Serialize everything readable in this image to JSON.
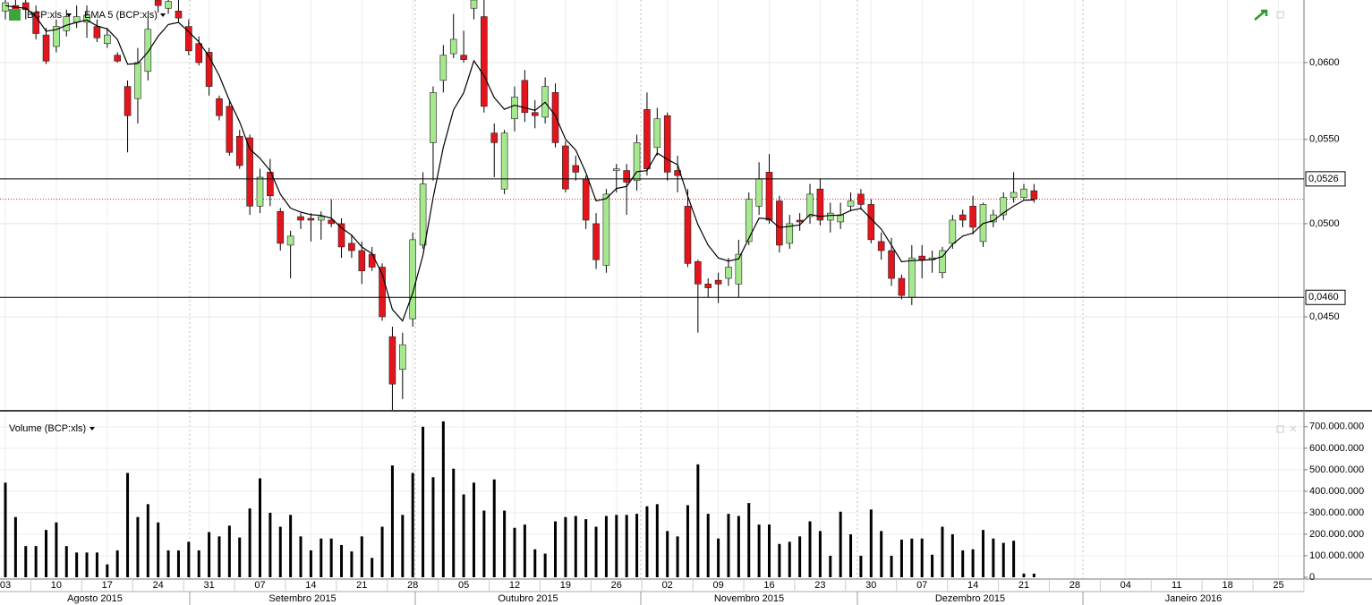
{
  "chart_data": [
    {
      "type": "candlestick",
      "name": "BCP:xls",
      "log_scale": true,
      "grid": true,
      "up_color": "#a6e88e",
      "down_color": "#e3141c",
      "categories": [
        "03",
        null,
        null,
        null,
        null,
        "10",
        null,
        null,
        null,
        null,
        "17",
        null,
        null,
        null,
        null,
        "24",
        null,
        null,
        null,
        null,
        "31",
        null,
        null,
        null,
        null,
        "07",
        null,
        null,
        null,
        null,
        "14",
        null,
        null,
        null,
        null,
        "21",
        null,
        null,
        null,
        null,
        "28",
        null,
        null,
        null,
        null,
        "05",
        null,
        null,
        null,
        null,
        "12",
        null,
        null,
        null,
        null,
        "19",
        null,
        null,
        null,
        null,
        "26",
        null,
        null,
        null,
        null,
        "02",
        null,
        null,
        null,
        null,
        "09",
        null,
        null,
        null,
        null,
        "16",
        null,
        null,
        null,
        null,
        "23",
        null,
        null,
        null,
        null,
        "30",
        null,
        null,
        null,
        null,
        "07",
        null,
        null,
        null,
        null,
        "14",
        null,
        null,
        null,
        null,
        "21",
        null,
        null,
        null,
        null,
        "28",
        null,
        null,
        null,
        null,
        "04",
        null,
        null,
        null,
        null,
        "11",
        null,
        null,
        null,
        null,
        "18",
        null,
        null,
        null,
        null,
        "25"
      ],
      "months": [
        "Agosto 2015",
        "Setembro 2015",
        "Outubro 2015",
        "Novembro 2015",
        "Dezembro 2015",
        "Janeiro 2016"
      ],
      "open": [
        0.0636,
        0.064,
        0.0642,
        0.0635,
        0.0619,
        0.0611,
        0.0622,
        0.0628,
        0.0628,
        0.0625,
        0.0613,
        0.0605,
        0.0584,
        0.0576,
        0.0594,
        0.0644,
        0.0638,
        0.0636,
        0.0625,
        0.0613,
        0.0607,
        0.0576,
        0.0571,
        0.0552,
        0.0551,
        0.051,
        0.053,
        0.0507,
        0.0488,
        0.0504,
        0.0503,
        0.0502,
        0.0502,
        0.05,
        0.0489,
        0.0485,
        0.0483,
        0.0476,
        0.044,
        0.0424,
        0.0449,
        0.0488,
        0.0548,
        0.0588,
        0.0606,
        0.0605,
        0.0638,
        0.0632,
        0.0554,
        0.052,
        0.0563,
        0.0588,
        0.0567,
        0.0564,
        0.058,
        0.0546,
        0.0534,
        0.0526,
        0.05,
        0.0477,
        0.0531,
        0.0531,
        0.0525,
        0.0569,
        0.0545,
        0.0565,
        0.0531,
        0.051,
        0.0479,
        0.0467,
        0.0469,
        0.047,
        0.0467,
        0.049,
        0.051,
        0.053,
        0.0513,
        0.0489,
        0.0502,
        0.0504,
        0.052,
        0.0502,
        0.0501,
        0.051,
        0.0517,
        0.0511,
        0.049,
        0.0485,
        0.047,
        0.046,
        0.0482,
        0.048,
        0.0473,
        0.0489,
        0.0505,
        0.051,
        0.049,
        0.0501,
        0.0505,
        0.0515,
        0.0515,
        0.0519,
        null,
        null,
        null,
        null,
        null,
        null,
        null,
        null,
        null,
        null,
        null,
        null,
        null,
        null,
        null,
        null,
        null,
        null,
        null,
        null,
        null,
        null,
        null,
        null
      ],
      "high": [
        0.0644,
        0.0644,
        0.0644,
        0.064,
        0.0624,
        0.063,
        0.0637,
        0.064,
        0.064,
        0.063,
        0.0624,
        0.0607,
        0.0588,
        0.061,
        0.0632,
        0.0644,
        0.0644,
        0.0644,
        0.063,
        0.0618,
        0.061,
        0.0578,
        0.0574,
        0.0556,
        0.0553,
        0.0532,
        0.0538,
        0.0509,
        0.0496,
        0.0506,
        0.0506,
        0.0507,
        0.0514,
        0.0503,
        0.0494,
        0.049,
        0.0487,
        0.0478,
        0.0445,
        0.0442,
        0.0495,
        0.053,
        0.0584,
        0.0612,
        0.0634,
        0.0622,
        0.0644,
        0.0644,
        0.056,
        0.0556,
        0.0584,
        0.0595,
        0.0575,
        0.059,
        0.0586,
        0.0549,
        0.054,
        0.0528,
        0.0506,
        0.052,
        0.0535,
        0.0535,
        0.0553,
        0.058,
        0.057,
        0.0567,
        0.054,
        0.052,
        0.048,
        0.047,
        0.0473,
        0.0481,
        0.0491,
        0.0518,
        0.0536,
        0.0541,
        0.0516,
        0.0505,
        0.0506,
        0.0523,
        0.0526,
        0.0512,
        0.0512,
        0.0518,
        0.052,
        0.0514,
        0.0495,
        0.0492,
        0.0472,
        0.0488,
        0.0488,
        0.0485,
        0.0487,
        0.0505,
        0.0508,
        0.0516,
        0.0512,
        0.0508,
        0.0518,
        0.053,
        0.0523,
        0.0523,
        null,
        null,
        null,
        null,
        null,
        null,
        null,
        null,
        null,
        null,
        null,
        null,
        null,
        null,
        null,
        null,
        null,
        null,
        null,
        null,
        null,
        null,
        null,
        null
      ],
      "low": [
        0.063,
        0.0632,
        0.063,
        0.0616,
        0.0599,
        0.0607,
        0.0618,
        0.0624,
        0.0617,
        0.0614,
        0.061,
        0.06,
        0.0542,
        0.056,
        0.0588,
        0.0635,
        0.0634,
        0.0628,
        0.0605,
        0.0598,
        0.0578,
        0.0562,
        0.054,
        0.0532,
        0.0505,
        0.0506,
        0.051,
        0.0485,
        0.047,
        0.0497,
        0.049,
        0.0491,
        0.0498,
        0.0481,
        0.0481,
        0.0467,
        0.0474,
        0.0448,
        0.0405,
        0.041,
        0.0445,
        0.0486,
        0.0525,
        0.058,
        0.0603,
        0.06,
        0.063,
        0.0567,
        0.0527,
        0.0517,
        0.0555,
        0.0561,
        0.0557,
        0.056,
        0.0545,
        0.0518,
        0.0525,
        0.0497,
        0.0475,
        0.0473,
        0.0518,
        0.0505,
        0.0519,
        0.0528,
        0.054,
        0.0525,
        0.0518,
        0.0476,
        0.0442,
        0.046,
        0.0457,
        0.0466,
        0.046,
        0.0488,
        0.0505,
        0.05,
        0.0484,
        0.0486,
        0.0496,
        0.05,
        0.0499,
        0.0495,
        0.0497,
        0.0507,
        0.0508,
        0.0489,
        0.048,
        0.0466,
        0.0459,
        0.0456,
        0.047,
        0.0473,
        0.047,
        0.0486,
        0.0498,
        0.0494,
        0.0487,
        0.0498,
        0.0502,
        0.0512,
        0.0514,
        0.0512,
        null,
        null,
        null,
        null,
        null,
        null,
        null,
        null,
        null,
        null,
        null,
        null,
        null,
        null,
        null,
        null,
        null,
        null,
        null,
        null,
        null,
        null,
        null,
        null
      ],
      "close": [
        0.0642,
        0.0636,
        0.0637,
        0.062,
        0.0601,
        0.0625,
        0.0632,
        0.0632,
        0.0633,
        0.0617,
        0.0619,
        0.0601,
        0.0565,
        0.06,
        0.0623,
        0.064,
        0.0643,
        0.0631,
        0.0608,
        0.06,
        0.0584,
        0.0565,
        0.0542,
        0.0534,
        0.051,
        0.0527,
        0.0516,
        0.0489,
        0.0493,
        0.0502,
        0.0502,
        0.0504,
        0.05,
        0.0487,
        0.0485,
        0.0474,
        0.0476,
        0.045,
        0.0417,
        0.0436,
        0.0491,
        0.0523,
        0.058,
        0.0605,
        0.0616,
        0.0602,
        0.0644,
        0.0571,
        0.0548,
        0.0554,
        0.0577,
        0.0567,
        0.0565,
        0.0584,
        0.0548,
        0.052,
        0.053,
        0.0502,
        0.048,
        0.0517,
        0.0532,
        0.0524,
        0.0548,
        0.0532,
        0.0563,
        0.053,
        0.0528,
        0.0478,
        0.0467,
        0.0465,
        0.0467,
        0.0476,
        0.0483,
        0.0514,
        0.0526,
        0.0502,
        0.0488,
        0.05,
        0.0501,
        0.0517,
        0.0502,
        0.0506,
        0.0505,
        0.0513,
        0.0511,
        0.0491,
        0.0485,
        0.047,
        0.0461,
        0.0481,
        0.048,
        0.0481,
        0.0485,
        0.0502,
        0.0502,
        0.0498,
        0.0511,
        0.0505,
        0.0515,
        0.0518,
        0.052,
        0.0514,
        null,
        null,
        null,
        null,
        null,
        null,
        null,
        null,
        null,
        null,
        null,
        null,
        null,
        null,
        null,
        null,
        null,
        null,
        null,
        null,
        null,
        null,
        null,
        null
      ],
      "overlays": [
        {
          "type": "line",
          "name": "EMA 5 (BCP:xls)",
          "color": "#000000",
          "values": [
            0.064,
            0.06387,
            0.06381,
            0.06321,
            0.06217,
            0.06228,
            0.06259,
            0.06279,
            0.06296,
            0.06254,
            0.06233,
            0.06159,
            0.05989,
            0.05993,
            0.06072,
            0.06181,
            0.06264,
            0.06279,
            0.06213,
            0.06142,
            0.06041,
            0.05911,
            0.05747,
            0.05611,
            0.05441,
            0.05384,
            0.05309,
            0.05169,
            0.05089,
            0.05066,
            0.05051,
            0.05047,
            0.05031,
            0.04977,
            0.04935,
            0.0487,
            0.04833,
            0.04722,
            0.04538,
            0.04479,
            0.04623,
            0.04825,
            0.0515,
            0.0545,
            0.05687,
            0.05798,
            0.06012,
            0.05911,
            0.05767,
            0.05691,
            0.05717,
            0.05701,
            0.05684,
            0.05736,
            0.05651,
            0.05501,
            0.05434,
            0.05296,
            0.05131,
            0.05144,
            0.05203,
            0.05215,
            0.05303,
            0.05309,
            0.05416,
            0.05377,
            0.05345,
            0.05157,
            0.04995,
            0.0488,
            0.0481,
            0.04793,
            0.04805,
            0.04917,
            0.05031,
            0.05027,
            0.04978,
            0.04985,
            0.04993,
            0.05052,
            0.05041,
            0.05047,
            0.05048,
            0.05075,
            0.05087,
            0.05028,
            0.04969,
            0.04879,
            0.04789,
            0.04796,
            0.04797,
            0.04801,
            0.04817,
            0.04885,
            0.0493,
            0.04947,
            0.05001,
            0.05017,
            0.05061,
            0.05101,
            0.05134,
            0.05136,
            null,
            null,
            null,
            null,
            null,
            null,
            null,
            null,
            null,
            null,
            null,
            null,
            null,
            null,
            null,
            null,
            null,
            null,
            null,
            null,
            null,
            null,
            null,
            null
          ]
        }
      ],
      "hlines": [
        {
          "value": 0.0526,
          "label": "0,0526"
        },
        {
          "value": 0.046,
          "label": "0,0460"
        }
      ],
      "ylim": [
        0.0405,
        0.0644
      ],
      "yticks": [
        {
          "value": 0.06,
          "label": "0,0600"
        },
        {
          "value": 0.055,
          "label": "0,0550"
        },
        {
          "value": 0.05,
          "label": "0,0500"
        },
        {
          "value": 0.045,
          "label": "0,0450"
        }
      ]
    },
    {
      "type": "bar",
      "name": "Volume (BCP:xls)",
      "color": "#000000",
      "grid": true,
      "values": [
        440000000,
        280000000,
        145000000,
        145000000,
        220000000,
        255000000,
        145000000,
        115000000,
        115000000,
        115000000,
        60000000,
        125000000,
        485000000,
        280000000,
        340000000,
        255000000,
        125000000,
        125000000,
        165000000,
        125000000,
        210000000,
        190000000,
        240000000,
        185000000,
        320000000,
        460000000,
        300000000,
        235000000,
        290000000,
        190000000,
        125000000,
        180000000,
        180000000,
        150000000,
        120000000,
        190000000,
        90000000,
        235000000,
        520000000,
        290000000,
        485000000,
        700000000,
        465000000,
        725000000,
        505000000,
        385000000,
        440000000,
        310000000,
        455000000,
        310000000,
        230000000,
        245000000,
        130000000,
        110000000,
        260000000,
        280000000,
        285000000,
        270000000,
        235000000,
        285000000,
        290000000,
        290000000,
        295000000,
        330000000,
        340000000,
        215000000,
        190000000,
        335000000,
        525000000,
        295000000,
        180000000,
        295000000,
        285000000,
        345000000,
        245000000,
        245000000,
        155000000,
        165000000,
        190000000,
        260000000,
        215000000,
        100000000,
        305000000,
        200000000,
        100000000,
        315000000,
        215000000,
        100000000,
        175000000,
        180000000,
        180000000,
        105000000,
        235000000,
        200000000,
        125000000,
        130000000,
        220000000,
        180000000,
        160000000,
        170000000,
        17000000,
        17000000,
        null,
        null,
        null,
        null,
        null,
        null,
        null,
        null,
        null,
        null,
        null,
        null,
        null,
        null,
        null,
        null,
        null,
        null,
        null,
        null,
        null,
        null,
        null,
        null
      ],
      "ylim": [
        0,
        770000000
      ],
      "yticks": [
        0,
        {
          "value": 100000000,
          "label": "100.000.000"
        },
        {
          "value": 200000000,
          "label": "200.000.000"
        },
        {
          "value": 300000000,
          "label": "300.000.000"
        },
        {
          "value": 400000000,
          "label": "400.000.000"
        },
        {
          "value": 500000000,
          "label": "500.000.000"
        },
        {
          "value": 600000000,
          "label": "600.000.000"
        },
        {
          "value": 700000000,
          "label": "700.000.000"
        }
      ]
    }
  ]
}
